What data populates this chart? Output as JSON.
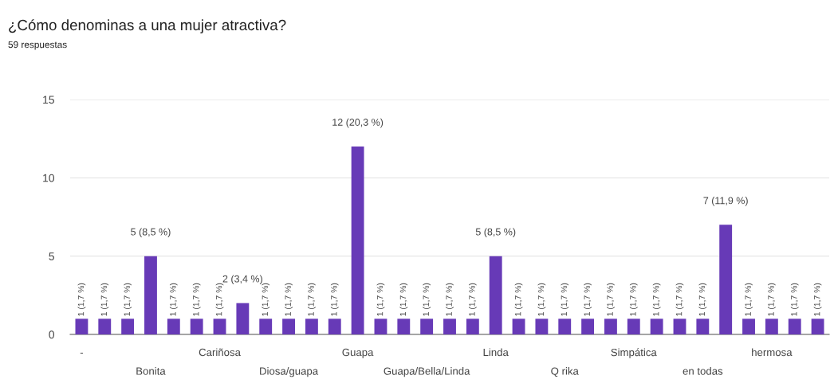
{
  "chart_data": {
    "type": "bar",
    "title": "¿Cómo denominas a una mujer atractiva?",
    "subtitle": "59 respuestas",
    "categories": [
      "-",
      null,
      null,
      "Bonita",
      null,
      null,
      "Cariñosa",
      null,
      null,
      "Diosa/guapa",
      null,
      null,
      "Guapa",
      null,
      null,
      "Guapa/Bella/Linda",
      null,
      null,
      "Linda",
      null,
      null,
      "Q rika",
      null,
      null,
      "Simpática",
      null,
      null,
      "en todas",
      null,
      null,
      "hermosa",
      null,
      null
    ],
    "values": [
      1,
      1,
      1,
      5,
      1,
      1,
      1,
      2,
      1,
      1,
      1,
      1,
      12,
      1,
      1,
      1,
      1,
      1,
      5,
      1,
      1,
      1,
      1,
      1,
      1,
      1,
      1,
      1,
      7,
      1,
      1,
      1,
      1
    ],
    "value_labels": [
      "1 (1,7 %)",
      "1 (1,7 %)",
      "1 (1,7 %)",
      "5 (8,5 %)",
      "1 (1,7 %)",
      "1 (1,7 %)",
      "1 (1,7 %)",
      "2 (3,4 %)",
      "1 (1,7 %)",
      "1 (1,7 %)",
      "1 (1,7 %)",
      "1 (1,7 %)",
      "12 (20,3 %)",
      "1 (1,7 %)",
      "1 (1,7 %)",
      "1 (1,7 %)",
      "1 (1,7 %)",
      "1 (1,7 %)",
      "5 (8,5 %)",
      "1 (1,7 %)",
      "1 (1,7 %)",
      "1 (1,7 %)",
      "1 (1,7 %)",
      "1 (1,7 %)",
      "1 (1,7 %)",
      "1 (1,7 %)",
      "1 (1,7 %)",
      "1 (1,7 %)",
      "7 (11,9 %)",
      "1 (1,7 %)",
      "1 (1,7 %)",
      "1 (1,7 %)",
      "1 (1,7 %)"
    ],
    "color": "#673ab7",
    "ylim": [
      0,
      15
    ],
    "yticks": [
      0,
      5,
      10,
      15
    ],
    "grid": "y",
    "legend": false
  }
}
